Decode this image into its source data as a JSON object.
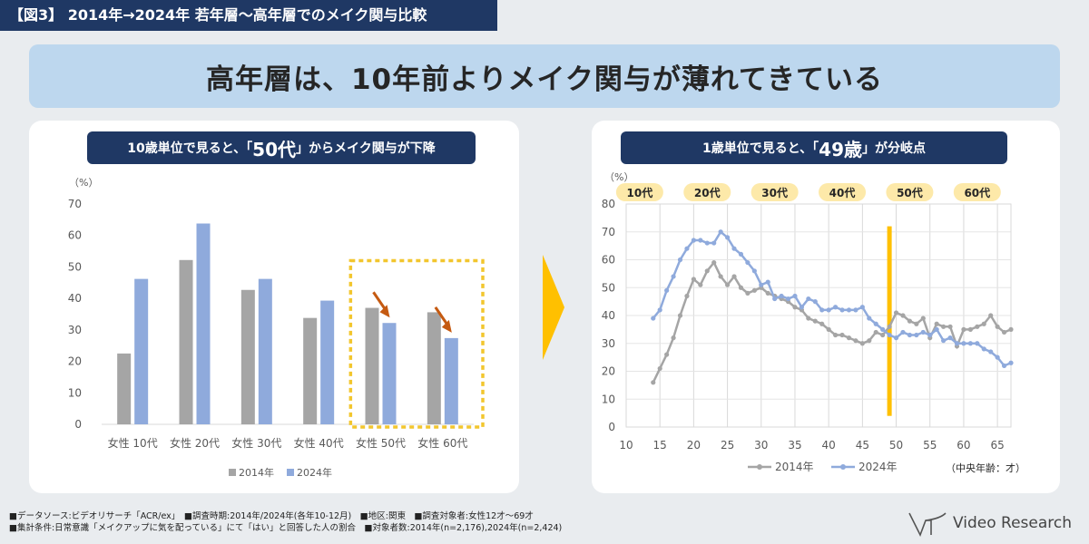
{
  "figure_label": "【図3】 2014年→2024年 若年層～高年層でのメイク関与比較",
  "headline": "高年層は、10年前よりメイク関与が薄れてきている",
  "left_panel": {
    "pill_pre": "10歳単位で見ると、「",
    "pill_big": "50代",
    "pill_post": "」からメイク関与が下降"
  },
  "right_panel": {
    "pill_pre": "1歳単位で見ると、「",
    "pill_big": "49歳",
    "pill_post": "」が分岐点",
    "age_badges": [
      "10代",
      "20代",
      "30代",
      "40代",
      "50代",
      "60代"
    ]
  },
  "colors": {
    "gray": "#a5a5a5",
    "blue": "#8faadc",
    "navy": "#1f3864",
    "highlight": "#f2c62e",
    "arrow": "#c55a11",
    "divider": "#ffc000",
    "badge": "#fde9a9"
  },
  "chart_data": [
    {
      "type": "bar",
      "unit": "（%）",
      "categories": [
        "女性 10代",
        "女性 20代",
        "女性 30代",
        "女性 40代",
        "女性 50代",
        "女性 60代"
      ],
      "series": [
        {
          "name": "2014年",
          "values": [
            22.5,
            52.2,
            42.7,
            33.8,
            37.0,
            35.6
          ]
        },
        {
          "name": "2024年",
          "values": [
            46.2,
            63.8,
            46.2,
            39.3,
            32.2,
            27.4
          ]
        }
      ],
      "ylim": [
        0,
        70
      ],
      "yticks": [
        0,
        10,
        20,
        30,
        40,
        50,
        60,
        70
      ],
      "highlight_categories": [
        "女性 50代",
        "女性 60代"
      ],
      "legend_position": "bottom"
    },
    {
      "type": "line",
      "unit": "（%）",
      "xlabel": "（中央年齢：才）",
      "xlim": [
        10,
        67
      ],
      "xticks": [
        10,
        15,
        20,
        25,
        30,
        35,
        40,
        45,
        50,
        55,
        60,
        65
      ],
      "ylim": [
        0,
        80
      ],
      "yticks": [
        0,
        10,
        20,
        30,
        40,
        50,
        60,
        70,
        80
      ],
      "divider_x": 49,
      "series": [
        {
          "name": "2014年",
          "x": [
            14,
            15,
            16,
            17,
            18,
            19,
            20,
            21,
            22,
            23,
            24,
            25,
            26,
            27,
            28,
            29,
            30,
            31,
            32,
            33,
            34,
            35,
            36,
            37,
            38,
            39,
            40,
            41,
            42,
            43,
            44,
            45,
            46,
            47,
            48,
            49,
            50,
            51,
            52,
            53,
            54,
            55,
            56,
            57,
            58,
            59,
            60,
            61,
            62,
            63,
            64,
            65,
            66,
            67
          ],
          "values": [
            16,
            21,
            26,
            32,
            40,
            47,
            53,
            51,
            56,
            59,
            54,
            51,
            54,
            50,
            48,
            49,
            50,
            48,
            47,
            46,
            45,
            43,
            42,
            39,
            38,
            37,
            35,
            33,
            33,
            32,
            31,
            30,
            31,
            34,
            33,
            36,
            41,
            40,
            38,
            37,
            39,
            32,
            37,
            36,
            36,
            29,
            35,
            35,
            36,
            37,
            40,
            36,
            34,
            35
          ]
        },
        {
          "name": "2024年",
          "x": [
            14,
            15,
            16,
            17,
            18,
            19,
            20,
            21,
            22,
            23,
            24,
            25,
            26,
            27,
            28,
            29,
            30,
            31,
            32,
            33,
            34,
            35,
            36,
            37,
            38,
            39,
            40,
            41,
            42,
            43,
            44,
            45,
            46,
            47,
            48,
            49,
            50,
            51,
            52,
            53,
            54,
            55,
            56,
            57,
            58,
            59,
            60,
            61,
            62,
            63,
            64,
            65,
            66,
            67
          ],
          "values": [
            39,
            42,
            49,
            54,
            60,
            64,
            67,
            67,
            66,
            66,
            70,
            68,
            64,
            62,
            59,
            56,
            51,
            52,
            46,
            47,
            46,
            47,
            43,
            46,
            45,
            42,
            42,
            43,
            42,
            42,
            42,
            43,
            39,
            37,
            35,
            33,
            32,
            34,
            33,
            33,
            34,
            33,
            35,
            31,
            32,
            30,
            30,
            30,
            30,
            28,
            27,
            25,
            22,
            23
          ]
        }
      ],
      "legend_position": "bottom"
    }
  ],
  "footnotes": [
    "■データソース:ビデオリサーチ「ACR/ex」　■調査時期:2014年/2024年(各年10-12月)　■地区:関東　■調査対象者:女性12才～69才",
    "■集計条件:日常意識「メイクアップに気を配っている」にて「はい」と回答した人の割合　■対象者数:2014年(n=2,176),2024年(n=2,424)"
  ],
  "logo": {
    "text": "Video Research",
    "icon": "vr-logo-icon"
  }
}
